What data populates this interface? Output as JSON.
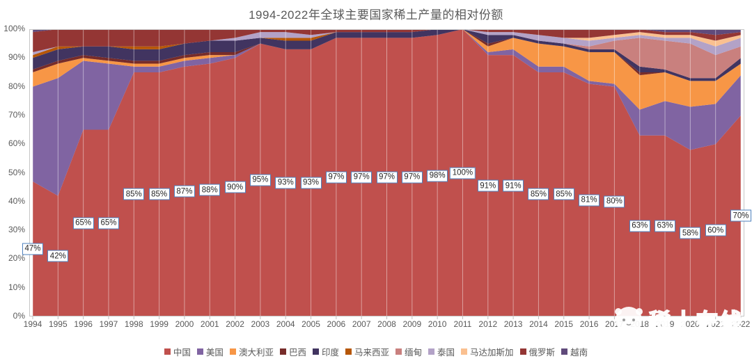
{
  "title": "1994-2022年全球主要国家稀土产量的相对份额",
  "watermark_text": "稀土在线",
  "axis": {
    "yticks": [
      "0%",
      "10%",
      "20%",
      "30%",
      "40%",
      "50%",
      "60%",
      "70%",
      "80%",
      "90%",
      "100%"
    ]
  },
  "chart_data": {
    "type": "area",
    "stacked": true,
    "title": "1994-2022年全球主要国家稀土产量的相对份额",
    "xlabel": "",
    "ylabel": "",
    "ylim": [
      0,
      100
    ],
    "grid": "vertical",
    "legend_position": "bottom",
    "x": [
      "1994",
      "1995",
      "1996",
      "1997",
      "1998",
      "1999",
      "2000",
      "2001",
      "2002",
      "2003",
      "2004",
      "2005",
      "2006",
      "2007",
      "2008",
      "2009",
      "2010",
      "2011",
      "2012",
      "2013",
      "2014",
      "2015",
      "2016",
      "2017",
      "2018",
      "2019",
      "2020",
      "2021",
      "2022"
    ],
    "data_labels_series": "中国",
    "data_labels": [
      "47%",
      "42%",
      "65%",
      "65%",
      "85%",
      "85%",
      "87%",
      "88%",
      "90%",
      "95%",
      "93%",
      "93%",
      "97%",
      "97%",
      "97%",
      "97%",
      "98%",
      "100%",
      "91%",
      "91%",
      "85%",
      "85%",
      "81%",
      "80%",
      "63%",
      "63%",
      "58%",
      "60%",
      "70%"
    ],
    "series": [
      {
        "name": "中国",
        "color": "#c0504d",
        "values": [
          47,
          42,
          65,
          65,
          85,
          85,
          87,
          88,
          90,
          95,
          93,
          93,
          97,
          97,
          97,
          97,
          98,
          100,
          91,
          91,
          85,
          85,
          81,
          80,
          63,
          63,
          58,
          60,
          70
        ]
      },
      {
        "name": "美国",
        "color": "#8064a2",
        "values": [
          33,
          41,
          24,
          23,
          2,
          2,
          2,
          2,
          1,
          0,
          0,
          0,
          0,
          0,
          0,
          0,
          0,
          0,
          1,
          2,
          2,
          2,
          1,
          1,
          9,
          12,
          15,
          14,
          14
        ]
      },
      {
        "name": "澳大利亚",
        "color": "#f79646",
        "values": [
          5,
          5,
          1,
          1,
          1,
          1,
          1,
          1,
          0,
          0,
          0,
          0,
          0,
          0,
          0,
          0,
          0,
          0,
          2,
          4,
          8,
          7,
          10,
          11,
          12,
          10,
          9,
          8,
          4
        ]
      },
      {
        "name": "巴西",
        "color": "#772c2a",
        "values": [
          1,
          1,
          1,
          1,
          1,
          1,
          1,
          1,
          1,
          0,
          0,
          0,
          0,
          0,
          0,
          0,
          0,
          0,
          1,
          0,
          0,
          0,
          0,
          0,
          1,
          0,
          0,
          0,
          0
        ]
      },
      {
        "name": "印度",
        "color": "#413460",
        "values": [
          4,
          4,
          3,
          4,
          4,
          4,
          4,
          4,
          4,
          2,
          3,
          3,
          2,
          2,
          2,
          2,
          2,
          0,
          3,
          1,
          1,
          1,
          1,
          1,
          2,
          1,
          1,
          1,
          2
        ]
      },
      {
        "name": "马来西亚",
        "color": "#b65708",
        "values": [
          1,
          1,
          0,
          0,
          1,
          1,
          0,
          0,
          0,
          0,
          1,
          1,
          0,
          0,
          0,
          0,
          0,
          0,
          0,
          0,
          0,
          0,
          0,
          0,
          0,
          0,
          0,
          0,
          0
        ]
      },
      {
        "name": "缅甸",
        "color": "#c9807e",
        "values": [
          0,
          0,
          0,
          0,
          0,
          0,
          0,
          0,
          0,
          0,
          0,
          0,
          0,
          0,
          0,
          0,
          0,
          0,
          0,
          0,
          0,
          0,
          1,
          3,
          10,
          10,
          12,
          8,
          4
        ]
      },
      {
        "name": "泰国",
        "color": "#b3a2c7",
        "values": [
          1,
          0,
          0,
          0,
          0,
          0,
          0,
          0,
          1,
          2,
          2,
          1,
          0,
          0,
          0,
          0,
          0,
          0,
          1,
          1,
          2,
          2,
          2,
          1,
          1,
          1,
          2,
          3,
          3
        ]
      },
      {
        "name": "马达加斯加",
        "color": "#fac090",
        "values": [
          0,
          0,
          0,
          0,
          0,
          0,
          0,
          0,
          0,
          0,
          0,
          0,
          0,
          0,
          0,
          0,
          0,
          0,
          0,
          0,
          0,
          0,
          1,
          1,
          1,
          1,
          1,
          2,
          1
        ]
      },
      {
        "name": "俄罗斯",
        "color": "#943634",
        "values": [
          7,
          6,
          6,
          6,
          6,
          6,
          5,
          4,
          3,
          1,
          1,
          2,
          1,
          1,
          1,
          1,
          0,
          0,
          1,
          1,
          2,
          3,
          3,
          2,
          1,
          1,
          1,
          2,
          1
        ]
      },
      {
        "name": "越南",
        "color": "#604a7b",
        "values": [
          1,
          0,
          0,
          0,
          0,
          0,
          0,
          0,
          0,
          0,
          0,
          0,
          0,
          0,
          0,
          0,
          0,
          0,
          0,
          0,
          0,
          0,
          0,
          0,
          0,
          1,
          1,
          2,
          1
        ]
      }
    ]
  }
}
